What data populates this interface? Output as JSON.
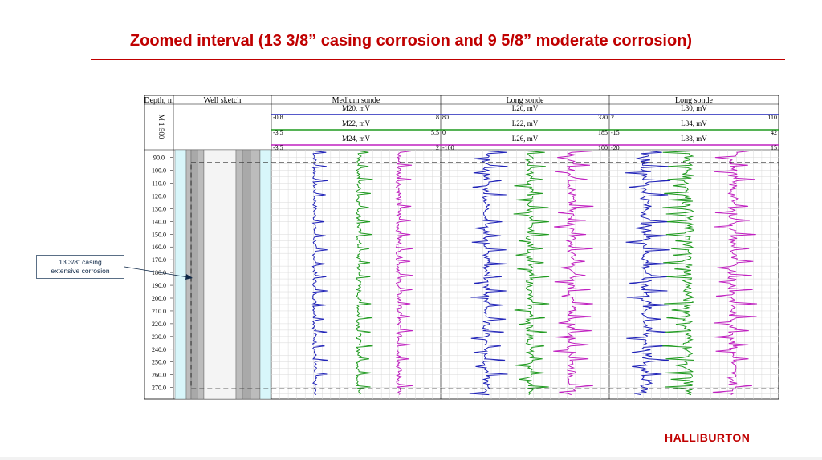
{
  "slide": {
    "title": "Zoomed interval (13 3/8” casing corrosion and 9 5/8” moderate corrosion)",
    "callout": [
      "13 3/8” casing",
      "extensive corrosion"
    ],
    "logo": "HALLIBURTON"
  },
  "colors": {
    "title": "#c00000",
    "blue": "#1f22b8",
    "green": "#1f9a1f",
    "magenta": "#c020c0",
    "casing_gray": "#bcbcbc",
    "annulus_cyan": "#d8f6fa"
  },
  "chart_data": {
    "type": "line",
    "header": {
      "depth_label": "Depth, m",
      "scale_label": "M 1:500",
      "sketch_label": "Well sketch"
    },
    "depth_range": [
      84,
      279
    ],
    "depth_ticks": [
      90,
      100,
      110,
      120,
      130,
      140,
      150,
      160,
      170,
      180,
      190,
      200,
      210,
      220,
      230,
      240,
      250,
      260,
      270
    ],
    "zoom_interval": [
      94,
      271
    ],
    "tracks": [
      {
        "title": "Medium sonde",
        "curves": [
          {
            "name": "M20, mV",
            "min": "-0.8",
            "max": "8",
            "color": "blue"
          },
          {
            "name": "M22, mV",
            "min": "-3.5",
            "max": "5.5",
            "color": "green"
          },
          {
            "name": "M24, mV",
            "min": "-3.5",
            "max": "2",
            "color": "magenta"
          }
        ]
      },
      {
        "title": "Long sonde",
        "curves": [
          {
            "name": "L20, mV",
            "min": "80",
            "max": "320",
            "color": "blue"
          },
          {
            "name": "L22, mV",
            "min": "0",
            "max": "185",
            "color": "green"
          },
          {
            "name": "L26, mV",
            "min": "-100",
            "max": "100",
            "color": "magenta"
          }
        ]
      },
      {
        "title": "Long sonde",
        "curves": [
          {
            "name": "L30, mV",
            "min": "2",
            "max": "110",
            "color": "blue"
          },
          {
            "name": "L34, mV",
            "min": "-15",
            "max": "42",
            "color": "green"
          },
          {
            "name": "L38, mV",
            "min": "-20",
            "max": "15",
            "color": "magenta"
          }
        ]
      }
    ]
  }
}
